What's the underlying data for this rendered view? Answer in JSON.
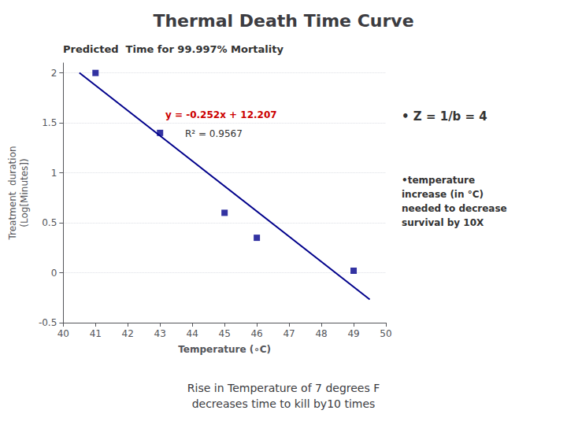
{
  "chart_data": {
    "type": "scatter",
    "title": "Thermal Death Time Curve",
    "subtitle": "Rise in Temperature of 7 degrees F\ndecreases time to kill by10 times",
    "xlabel": "Temperature (∘C)",
    "ylabel": "Treatment  duration\n(Log[Minutes])",
    "series": [
      {
        "type": "scatter",
        "marker": "square",
        "color": "#00008B",
        "x": [
          41,
          43,
          45,
          46,
          49
        ],
        "values": [
          2.0,
          1.4,
          0.6,
          0.35,
          0.02
        ]
      },
      {
        "type": "line",
        "color": "#00008B",
        "x": [
          40.5,
          49.5
        ],
        "values": [
          2.001,
          -0.267
        ]
      }
    ],
    "xlim": [
      40,
      50
    ],
    "xticks": [
      40,
      41,
      42,
      43,
      44,
      45,
      46,
      47,
      48,
      49,
      50
    ],
    "ylim": [
      -0.5,
      2.1
    ],
    "yticks": [
      -0.5,
      0,
      0.5,
      1,
      1.5,
      2
    ],
    "grid": true,
    "annotations": [
      {
        "text": "Predicted  Time for 99.997% Mortality"
      },
      {
        "text": "y = -0.252x + 12.207",
        "color": "#cc0000"
      },
      {
        "text": "R² = 0.9567"
      },
      {
        "text": "• Z = 1/b = 4"
      },
      {
        "text": "•temperature\nincrease (in °C)\nneeded to decrease\nsurvival by 10X"
      }
    ]
  }
}
